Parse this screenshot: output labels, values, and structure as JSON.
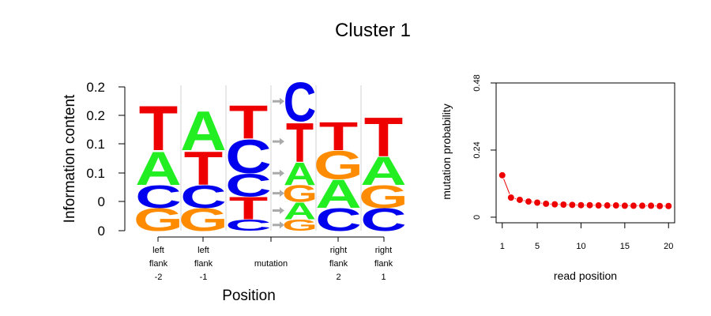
{
  "title": "Cluster 1",
  "colors": {
    "A": "#22ee22",
    "C": "#0000ee",
    "G": "#ff8c00",
    "T": "#ee0000",
    "arrow": "#aaaaaa",
    "point": "#ee0000"
  },
  "chart_data": [
    {
      "type": "sequence-logo",
      "ylabel": "Information content",
      "xlabel": "Position",
      "ytick_labels": [
        "0",
        "0",
        "0.1",
        "0.1",
        "0.2",
        "0.2"
      ],
      "yrange": [
        0,
        0.25
      ],
      "columns": [
        {
          "label": [
            "left",
            "flank",
            "-2"
          ],
          "stack": [
            {
              "l": "G",
              "h": 0.04
            },
            {
              "l": "C",
              "h": 0.04
            },
            {
              "l": "A",
              "h": 0.06
            },
            {
              "l": "T",
              "h": 0.08
            }
          ]
        },
        {
          "label": [
            "left",
            "flank",
            "-1"
          ],
          "stack": [
            {
              "l": "G",
              "h": 0.04
            },
            {
              "l": "C",
              "h": 0.04
            },
            {
              "l": "T",
              "h": 0.06
            },
            {
              "l": "A",
              "h": 0.07
            }
          ]
        },
        {
          "label": [],
          "stack": [
            {
              "l": "C",
              "h": 0.02
            },
            {
              "l": "T",
              "h": 0.04
            },
            {
              "l": "C",
              "h": 0.04
            },
            {
              "l": "C",
              "h": 0.06
            },
            {
              "l": "T",
              "h": 0.06
            }
          ]
        },
        {
          "label": [
            "mutation"
          ],
          "arrows": true,
          "stack": [
            {
              "l": "G",
              "h": 0.02
            },
            {
              "l": "A",
              "h": 0.03
            },
            {
              "l": "G",
              "h": 0.03
            },
            {
              "l": "A",
              "h": 0.04
            },
            {
              "l": "T",
              "h": 0.07
            },
            {
              "l": "C",
              "h": 0.07
            }
          ]
        },
        {
          "label": [
            "right",
            "flank",
            "2"
          ],
          "stack": [
            {
              "l": "C",
              "h": 0.04
            },
            {
              "l": "A",
              "h": 0.05
            },
            {
              "l": "G",
              "h": 0.05
            },
            {
              "l": "T",
              "h": 0.05
            }
          ]
        },
        {
          "label": [
            "right",
            "flank",
            "1"
          ],
          "stack": [
            {
              "l": "C",
              "h": 0.04
            },
            {
              "l": "G",
              "h": 0.04
            },
            {
              "l": "A",
              "h": 0.05
            },
            {
              "l": "T",
              "h": 0.07
            }
          ]
        }
      ]
    },
    {
      "type": "line",
      "xlabel": "read position",
      "ylabel": "mutation probability",
      "xticks": [
        1,
        5,
        10,
        15,
        20
      ],
      "yticks": [
        0,
        0.24,
        0.48
      ],
      "xlim": [
        0.3,
        20.7
      ],
      "ylim": [
        -0.02,
        0.48
      ],
      "x": [
        1,
        2,
        3,
        4,
        5,
        6,
        7,
        8,
        9,
        10,
        11,
        12,
        13,
        14,
        15,
        16,
        17,
        18,
        19,
        20
      ],
      "y": [
        0.15,
        0.07,
        0.062,
        0.056,
        0.052,
        0.048,
        0.046,
        0.045,
        0.044,
        0.043,
        0.043,
        0.042,
        0.042,
        0.042,
        0.041,
        0.041,
        0.041,
        0.041,
        0.04,
        0.04
      ]
    }
  ]
}
